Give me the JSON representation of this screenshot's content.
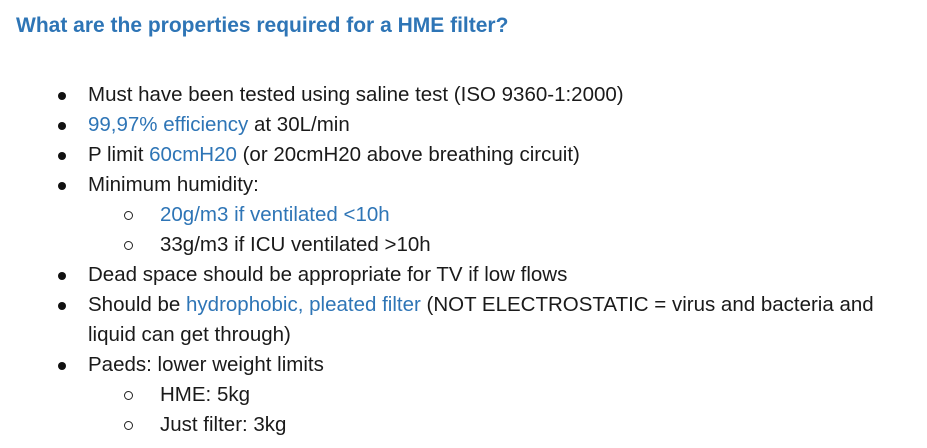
{
  "heading": "What are the properties required for a HME filter?",
  "items": [
    {
      "parts": [
        "Must have been tested using saline test (ISO 9360-1:2000)"
      ]
    },
    {
      "parts": [
        "99,97% efficiency",
        " at 30L/min"
      ]
    },
    {
      "parts": [
        "P limit ",
        "60cmH20",
        " (or 20cmH20 above breathing circuit)"
      ]
    },
    {
      "parts": [
        "Minimum humidity:"
      ]
    },
    {
      "parts": [
        "20g/m3 if ventilated <10h"
      ]
    },
    {
      "parts": [
        "33g/m3 if ICU ventilated >10h"
      ]
    },
    {
      "parts": [
        "Dead space should be appropriate for TV if low flows"
      ]
    },
    {
      "parts": [
        "Should be ",
        "hydrophobic, pleated filter",
        " (NOT ELECTROSTATIC = virus and bacteria and"
      ]
    },
    {
      "parts": [
        "liquid can get through)"
      ]
    },
    {
      "parts": [
        "Paeds: lower weight limits"
      ]
    },
    {
      "parts": [
        "HME: 5kg"
      ]
    },
    {
      "parts": [
        "Just filter: 3kg"
      ]
    }
  ],
  "colors": {
    "accent": "#2e75b6",
    "text": "#1a1a1a"
  }
}
